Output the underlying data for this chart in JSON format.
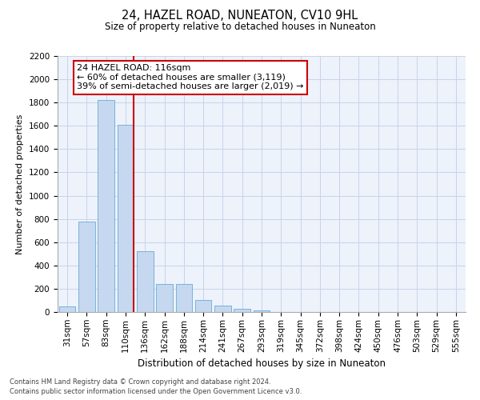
{
  "title": "24, HAZEL ROAD, NUNEATON, CV10 9HL",
  "subtitle": "Size of property relative to detached houses in Nuneaton",
  "xlabel": "Distribution of detached houses by size in Nuneaton",
  "ylabel": "Number of detached properties",
  "bar_labels": [
    "31sqm",
    "57sqm",
    "83sqm",
    "110sqm",
    "136sqm",
    "162sqm",
    "188sqm",
    "214sqm",
    "241sqm",
    "267sqm",
    "293sqm",
    "319sqm",
    "345sqm",
    "372sqm",
    "398sqm",
    "424sqm",
    "450sqm",
    "476sqm",
    "503sqm",
    "529sqm",
    "555sqm"
  ],
  "bar_values": [
    50,
    780,
    1820,
    1610,
    520,
    240,
    240,
    105,
    55,
    30,
    15,
    0,
    0,
    0,
    0,
    0,
    0,
    0,
    0,
    0,
    0
  ],
  "bar_color": "#c5d8f0",
  "bar_edgecolor": "#6aaad4",
  "marker_label": "24 HAZEL ROAD: 116sqm",
  "annotation_line1": "← 60% of detached houses are smaller (3,119)",
  "annotation_line2": "39% of semi-detached houses are larger (2,019) →",
  "vline_x": 3.43,
  "vline_color": "#cc0000",
  "ylim": [
    0,
    2200
  ],
  "yticks": [
    0,
    200,
    400,
    600,
    800,
    1000,
    1200,
    1400,
    1600,
    1800,
    2000,
    2200
  ],
  "footer1": "Contains HM Land Registry data © Crown copyright and database right 2024.",
  "footer2": "Contains public sector information licensed under the Open Government Licence v3.0.",
  "bg_color": "#edf2fb",
  "grid_color": "#c8d4e8",
  "title_fontsize": 10.5,
  "subtitle_fontsize": 8.5,
  "ylabel_fontsize": 8,
  "xlabel_fontsize": 8.5,
  "tick_fontsize": 7.5,
  "annot_fontsize": 8
}
